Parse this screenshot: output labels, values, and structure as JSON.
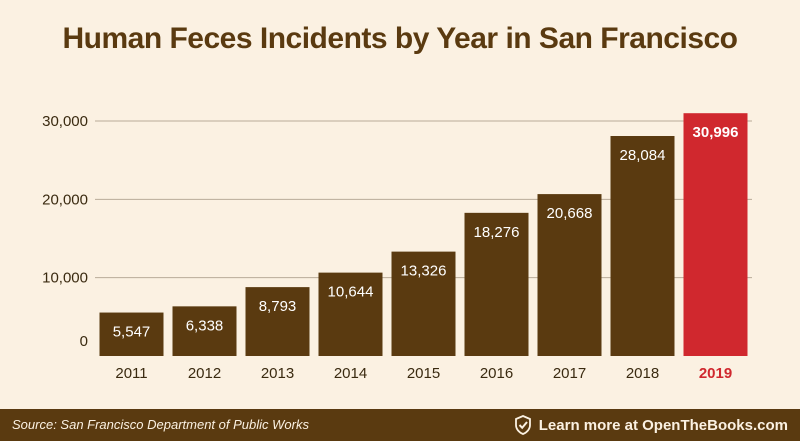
{
  "title": "Human Feces Incidents by Year in San Francisco",
  "footer": {
    "source": "Source: San Francisco Department of Public Works",
    "cta": "Learn more at OpenTheBooks.com"
  },
  "colors": {
    "background": "#fbf1e2",
    "bar": "#5a3a10",
    "highlight": "#d0282e",
    "text": "#3a2a10"
  },
  "icons": [
    "check-shield-icon"
  ],
  "chart_data": {
    "type": "bar",
    "title": "Human Feces Incidents by Year in San Francisco",
    "xlabel": "",
    "ylabel": "",
    "categories": [
      "2011",
      "2012",
      "2013",
      "2014",
      "2015",
      "2016",
      "2017",
      "2018",
      "2019"
    ],
    "values": [
      5547,
      6338,
      8793,
      10644,
      13326,
      18276,
      20668,
      28084,
      30996
    ],
    "data_labels": [
      "5,547",
      "6,338",
      "8,793",
      "10,644",
      "13,326",
      "18,276",
      "20,668",
      "28,084",
      "30,996"
    ],
    "highlight_category": "2019",
    "ylim": [
      0,
      30000
    ],
    "yticks": [
      0,
      10000,
      20000,
      30000
    ],
    "ytick_labels": [
      "0",
      "10,000",
      "20,000",
      "30,000"
    ],
    "grid": true,
    "legend": "none"
  }
}
